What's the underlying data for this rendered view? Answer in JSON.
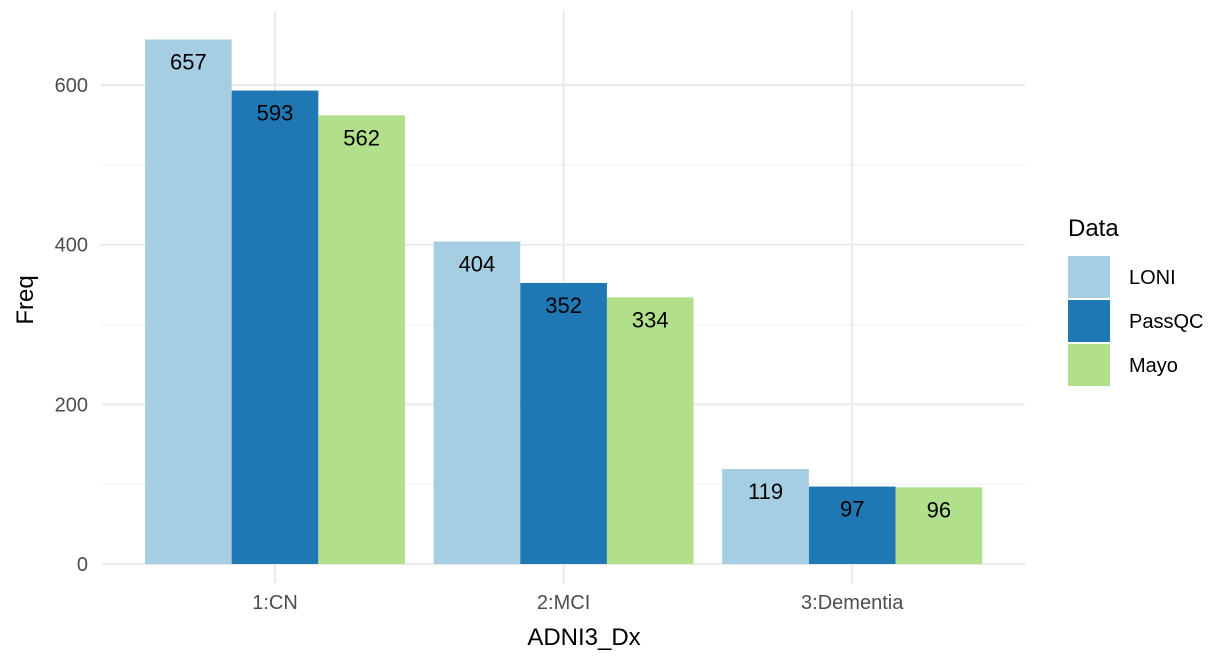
{
  "chart_data": {
    "type": "bar",
    "xlabel": "ADNI3_Dx",
    "ylabel": "Freq",
    "categories": [
      "1:CN",
      "2:MCI",
      "3:Dementia"
    ],
    "ylim": [
      0,
      660
    ],
    "y_ticks": [
      0,
      200,
      400,
      600
    ],
    "grid": true,
    "legend": {
      "title": "Data",
      "position": "right"
    },
    "series": [
      {
        "name": "LONI",
        "color": "#a6cee3",
        "values": [
          657,
          404,
          119
        ]
      },
      {
        "name": "PassQC",
        "color": "#1f78b4",
        "values": [
          593,
          352,
          97
        ]
      },
      {
        "name": "Mayo",
        "color": "#b2df8a",
        "values": [
          562,
          334,
          96
        ]
      }
    ]
  }
}
